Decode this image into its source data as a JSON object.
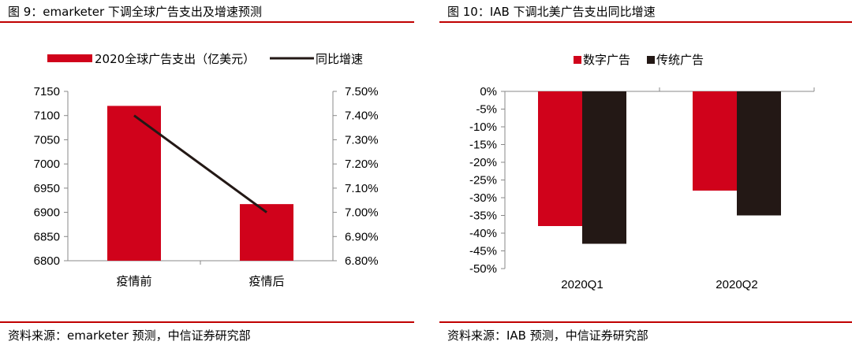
{
  "colors": {
    "red": "#d0021b",
    "dark": "#231815",
    "rule": "#c00000",
    "axis": "#888888"
  },
  "chart_data": [
    {
      "type": "bar+line",
      "title": "图 9：emarketer 下调全球广告支出及增速预测",
      "source": "资料来源：emarketer 预测，中信证券研究部",
      "categories": [
        "疫情前",
        "疫情后"
      ],
      "series": [
        {
          "name": "2020全球广告支出（亿美元）",
          "kind": "bar",
          "axis": "left",
          "values": [
            7120,
            6917
          ]
        },
        {
          "name": "同比增速",
          "kind": "line",
          "axis": "right",
          "values": [
            7.4,
            7.0
          ]
        }
      ],
      "ylim_left": [
        6800,
        7150
      ],
      "yticks_left": [
        "7150",
        "7100",
        "7050",
        "7000",
        "6950",
        "6900",
        "6850",
        "6800"
      ],
      "ylim_right": [
        6.8,
        7.5
      ],
      "yticks_right": [
        "7.50%",
        "7.40%",
        "7.30%",
        "7.20%",
        "7.10%",
        "7.00%",
        "6.90%",
        "6.80%"
      ],
      "legend_position": "top"
    },
    {
      "type": "bar",
      "title": "图 10：IAB 下调北美广告支出同比增速",
      "source": "资料来源：IAB 预测，中信证券研究部",
      "categories": [
        "2020Q1",
        "2020Q2"
      ],
      "series": [
        {
          "name": "数字广告",
          "values": [
            -38,
            -28
          ]
        },
        {
          "name": "传统广告",
          "values": [
            -43,
            -35
          ]
        }
      ],
      "ylim": [
        -50,
        0
      ],
      "yticks": [
        "0%",
        "-5%",
        "-10%",
        "-15%",
        "-20%",
        "-25%",
        "-30%",
        "-35%",
        "-40%",
        "-45%",
        "-50%"
      ],
      "legend_position": "top"
    }
  ]
}
